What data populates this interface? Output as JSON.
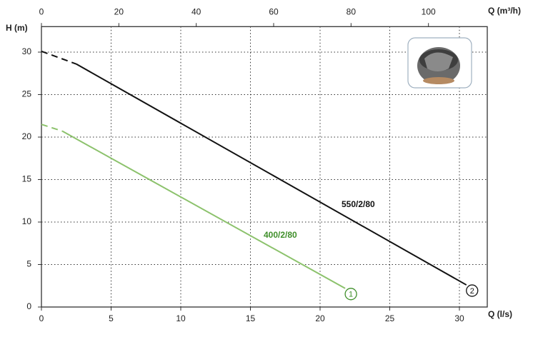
{
  "chart_data": {
    "type": "line",
    "y_label": "H (m)",
    "x_label": "Q (l/s)",
    "x2_label": "Q (m³/h)",
    "xlim": [
      0,
      32
    ],
    "xticks": [
      0,
      5,
      10,
      15,
      20,
      25,
      30
    ],
    "x2lim": [
      0,
      115.2
    ],
    "x2ticks": [
      0,
      20,
      40,
      60,
      80,
      100
    ],
    "ylim": [
      0,
      33
    ],
    "yticks": [
      0,
      5,
      10,
      15,
      20,
      25,
      30
    ],
    "grid": true,
    "series": [
      {
        "name": "550/2/80",
        "color": "#111111",
        "label_color": "#111111",
        "end_label": "2",
        "x": [
          0,
          2.5,
          30.5
        ],
        "values": [
          30.1,
          28.6,
          2.6
        ],
        "line_styles": [
          "dashed",
          "solid"
        ]
      },
      {
        "name": "400/2/80",
        "color": "#8cc26c",
        "label_color": "#3f8f2a",
        "end_label": "1",
        "x": [
          0,
          1.5,
          21.8
        ],
        "values": [
          21.5,
          20.7,
          2.2
        ],
        "line_styles": [
          "dashed",
          "solid"
        ]
      }
    ]
  }
}
